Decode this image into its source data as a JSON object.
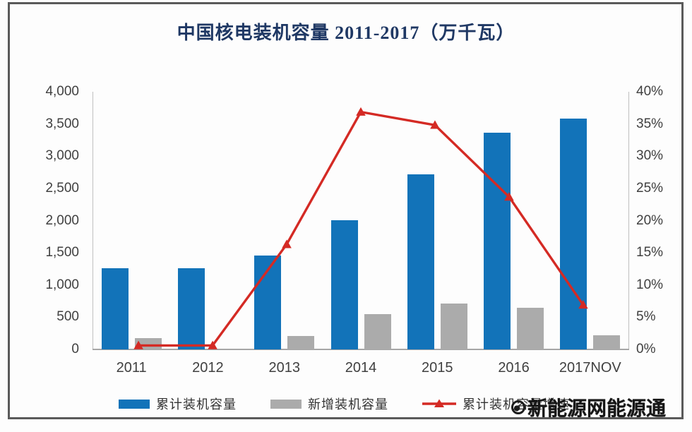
{
  "title": "中国核电装机容量 2011-2017（万千瓦）",
  "watermark": {
    "icon": "energy-site-logo",
    "text": "新能源网能源通"
  },
  "legend": [
    {
      "label": "累计装机容量",
      "type": "bar",
      "color": "#1273b9"
    },
    {
      "label": "新增装机容量",
      "type": "bar",
      "color": "#ababab"
    },
    {
      "label": "累计装机容量增速",
      "type": "line",
      "color": "#d42a24"
    }
  ],
  "colors": {
    "cumulative_bar": "#1273b9",
    "new_bar": "#ababab",
    "growth_line": "#d42a24",
    "title_text": "#1f3864",
    "axis_text": "#404040",
    "frame_border": "#5a5a5a"
  },
  "chart_data": {
    "type": "bar",
    "subtype": "combo-bar-line-dual-axis",
    "title": "中国核电装机容量 2011-2017（万千瓦）",
    "categories": [
      "2011",
      "2012",
      "2013",
      "2014",
      "2015",
      "2016",
      "2017NOV"
    ],
    "series": [
      {
        "name": "累计装机容量",
        "type": "bar",
        "axis": "left",
        "color": "#1273b9",
        "values": [
          1257,
          1257,
          1461,
          2008,
          2717,
          3364,
          3581
        ]
      },
      {
        "name": "新增装机容量",
        "type": "bar",
        "axis": "left",
        "color": "#ababab",
        "values": [
          172,
          0,
          204,
          547,
          709,
          647,
          217
        ]
      },
      {
        "name": "累计装机容量增速",
        "type": "line",
        "axis": "right",
        "color": "#d42a24",
        "values": [
          0,
          0,
          16.2,
          37.4,
          35.3,
          23.8,
          6.5
        ],
        "unit": "%"
      }
    ],
    "left_axis": {
      "min": 0,
      "max": 4000,
      "step": 500,
      "tick_labels": [
        "4,000",
        "3,500",
        "3,000",
        "2,500",
        "2,000",
        "1,500",
        "1,000",
        "500",
        "0"
      ]
    },
    "right_axis": {
      "min": 0,
      "max": 40,
      "step": 5,
      "tick_labels": [
        "40%",
        "35%",
        "30%",
        "25%",
        "20%",
        "15%",
        "10%",
        "5%",
        "0%"
      ]
    },
    "grid": false,
    "legend_position": "bottom"
  }
}
